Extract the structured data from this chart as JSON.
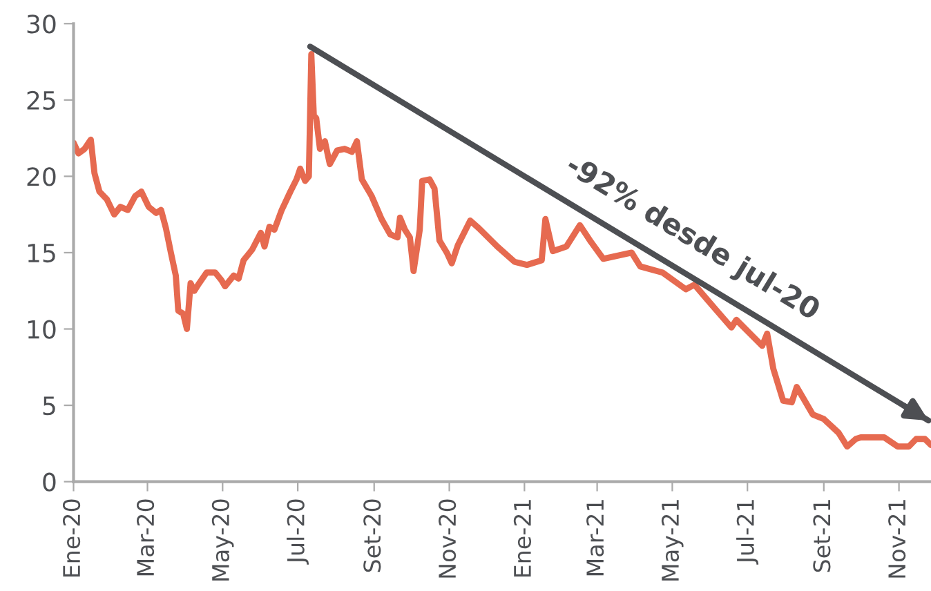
{
  "chart_data": {
    "type": "line",
    "xlim": [
      "2020-01-01",
      "2021-11-27"
    ],
    "ylim": [
      0,
      30
    ],
    "yticks": [
      0,
      5,
      10,
      15,
      20,
      25,
      30
    ],
    "xticks": [
      {
        "value": "2020-01-01",
        "label": "Ene-20"
      },
      {
        "value": "2020-03-01",
        "label": "Mar-20"
      },
      {
        "value": "2020-05-01",
        "label": "May-20"
      },
      {
        "value": "2020-07-01",
        "label": "Jul-20"
      },
      {
        "value": "2020-09-01",
        "label": "Set-20"
      },
      {
        "value": "2020-11-01",
        "label": "Nov-20"
      },
      {
        "value": "2021-01-01",
        "label": "Ene-21"
      },
      {
        "value": "2021-03-01",
        "label": "Mar-21"
      },
      {
        "value": "2021-05-01",
        "label": "May-21"
      },
      {
        "value": "2021-07-01",
        "label": "Jul-21"
      },
      {
        "value": "2021-09-01",
        "label": "Set-21"
      },
      {
        "value": "2021-11-01",
        "label": "Nov-21"
      }
    ],
    "grid": false,
    "marker": "none",
    "line_style": "solid",
    "series": [
      {
        "color": "#e66a50",
        "x": [
          "2020-01-01",
          "2020-01-05",
          "2020-01-10",
          "2020-01-15",
          "2020-01-18",
          "2020-01-22",
          "2020-01-28",
          "2020-02-03",
          "2020-02-08",
          "2020-02-14",
          "2020-02-20",
          "2020-02-25",
          "2020-03-02",
          "2020-03-08",
          "2020-03-12",
          "2020-03-16",
          "2020-03-20",
          "2020-03-24",
          "2020-03-26",
          "2020-03-30",
          "2020-04-02",
          "2020-04-05",
          "2020-04-08",
          "2020-04-12",
          "2020-04-18",
          "2020-04-25",
          "2020-04-30",
          "2020-05-03",
          "2020-05-10",
          "2020-05-14",
          "2020-05-18",
          "2020-05-25",
          "2020-06-01",
          "2020-06-04",
          "2020-06-08",
          "2020-06-12",
          "2020-06-18",
          "2020-06-25",
          "2020-06-30",
          "2020-07-03",
          "2020-07-07",
          "2020-07-10",
          "2020-07-12",
          "2020-07-14",
          "2020-07-16",
          "2020-07-19",
          "2020-07-23",
          "2020-07-27",
          "2020-08-02",
          "2020-08-08",
          "2020-08-14",
          "2020-08-18",
          "2020-08-22",
          "2020-08-30",
          "2020-09-07",
          "2020-09-14",
          "2020-09-20",
          "2020-09-22",
          "2020-09-26",
          "2020-09-30",
          "2020-10-03",
          "2020-10-08",
          "2020-10-10",
          "2020-10-16",
          "2020-10-20",
          "2020-10-24",
          "2020-10-30",
          "2020-11-03",
          "2020-11-08",
          "2020-11-13",
          "2020-11-18",
          "2020-11-25",
          "2020-12-10",
          "2020-12-24",
          "2021-01-03",
          "2021-01-15",
          "2021-01-18",
          "2021-01-24",
          "2021-02-04",
          "2021-02-15",
          "2021-02-24",
          "2021-03-06",
          "2021-03-29",
          "2021-04-05",
          "2021-04-23",
          "2021-05-12",
          "2021-05-19",
          "2021-06-04",
          "2021-06-18",
          "2021-06-22",
          "2021-07-13",
          "2021-07-17",
          "2021-07-22",
          "2021-07-30",
          "2021-08-06",
          "2021-08-10",
          "2021-08-23",
          "2021-09-01",
          "2021-09-13",
          "2021-09-20",
          "2021-09-27",
          "2021-10-01",
          "2021-10-20",
          "2021-10-31",
          "2021-11-09",
          "2021-11-15",
          "2021-11-22",
          "2021-11-27"
        ],
        "values": [
          22.2,
          21.5,
          21.8,
          22.4,
          20.2,
          19.0,
          18.5,
          17.5,
          18.0,
          17.8,
          18.7,
          19.0,
          18.0,
          17.6,
          17.8,
          16.6,
          15.0,
          13.5,
          11.2,
          11.0,
          10.0,
          13.0,
          12.5,
          13.0,
          13.7,
          13.7,
          13.2,
          12.8,
          13.5,
          13.3,
          14.5,
          15.2,
          16.3,
          15.4,
          16.7,
          16.5,
          17.8,
          19.0,
          19.8,
          20.5,
          19.7,
          20.0,
          28.0,
          24.0,
          23.8,
          21.8,
          22.3,
          20.8,
          21.7,
          21.8,
          21.6,
          22.3,
          19.8,
          18.7,
          17.2,
          16.2,
          16.0,
          17.3,
          16.5,
          16.0,
          13.8,
          16.5,
          19.7,
          19.8,
          19.2,
          15.8,
          15.0,
          14.3,
          15.5,
          16.3,
          17.1,
          16.6,
          15.4,
          14.4,
          14.2,
          14.5,
          17.2,
          15.1,
          15.4,
          16.8,
          15.7,
          14.6,
          15.0,
          14.1,
          13.7,
          12.6,
          12.9,
          11.4,
          10.1,
          10.6,
          8.9,
          9.7,
          7.4,
          5.3,
          5.2,
          6.2,
          4.4,
          4.1,
          3.2,
          2.3,
          2.8,
          2.9,
          2.9,
          2.3,
          2.3,
          2.8,
          2.8,
          2.4
        ]
      },
      {
        "type": "line",
        "color": "#4d4f53",
        "x": [
          "2020-07-11",
          "2021-11-25"
        ],
        "values": [
          28.5,
          4.0
        ]
      }
    ],
    "annotations": [
      "-92% desde jul-20"
    ]
  }
}
